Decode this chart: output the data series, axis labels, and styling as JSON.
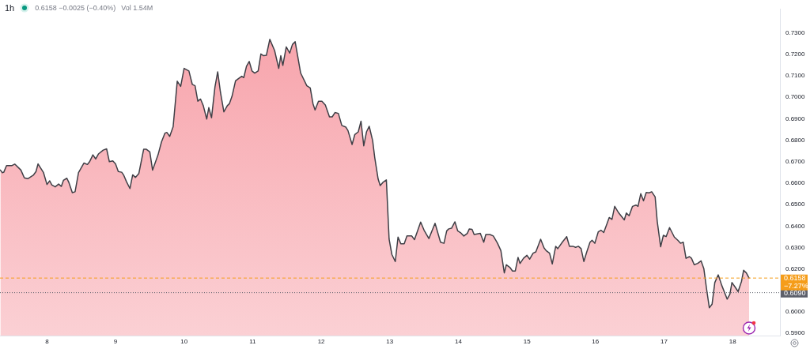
{
  "chart_data": {
    "type": "area",
    "title": "1h",
    "annotations": [
      "0.6158 −0.0025 (−0.40%)",
      "Vol 1.54M"
    ],
    "color": "#f7a1a9",
    "x": [
      7.32,
      7.35,
      7.37,
      7.41,
      7.49,
      7.53,
      7.62,
      7.67,
      7.72,
      7.8,
      7.84,
      7.87,
      7.95,
      8.0,
      8.04,
      8.07,
      8.12,
      8.17,
      8.21,
      8.24,
      8.29,
      8.32,
      8.37,
      8.41,
      8.46,
      8.54,
      8.59,
      8.62,
      8.67,
      8.71,
      8.75,
      8.82,
      8.87,
      8.91,
      8.96,
      9.0,
      9.04,
      9.09,
      9.12,
      9.16,
      9.21,
      9.25,
      9.29,
      9.34,
      9.41,
      9.45,
      9.5,
      9.54,
      9.62,
      9.67,
      9.72,
      9.75,
      9.79,
      9.84,
      9.9,
      9.95,
      10.0,
      10.07,
      10.12,
      10.16,
      10.2,
      10.24,
      10.28,
      10.33,
      10.36,
      10.4,
      10.45,
      10.49,
      10.53,
      10.58,
      10.63,
      10.66,
      10.7,
      10.75,
      10.8,
      10.84,
      10.87,
      10.91,
      10.95,
      10.99,
      11.03,
      11.08,
      11.12,
      11.16,
      11.2,
      11.25,
      11.32,
      11.38,
      11.41,
      11.44,
      11.49,
      11.54,
      11.58,
      11.62,
      11.7,
      11.79,
      11.84,
      11.88,
      11.91,
      11.96,
      12.01,
      12.06,
      12.12,
      12.16,
      12.2,
      12.25,
      12.3,
      12.36,
      12.39,
      12.45,
      12.49,
      12.54,
      12.58,
      12.62,
      12.66,
      12.7,
      12.75,
      12.78,
      12.83,
      12.86,
      12.9,
      12.95,
      12.99,
      13.03,
      13.08,
      13.12,
      13.16,
      13.21,
      13.25,
      13.32,
      13.36,
      13.45,
      13.5,
      13.57,
      13.66,
      13.74,
      13.79,
      13.83,
      13.86,
      13.9,
      13.95,
      13.99,
      14.03,
      14.08,
      14.13,
      14.16,
      14.2,
      14.23,
      14.32,
      14.37,
      14.4,
      14.46,
      14.51,
      14.57,
      14.62,
      14.67,
      14.7,
      14.75,
      14.79,
      14.83,
      14.87,
      14.9,
      14.95,
      15.0,
      15.04,
      15.09,
      15.13,
      15.2,
      15.25,
      15.28,
      15.33,
      15.37,
      15.42,
      15.45,
      15.52,
      15.58,
      15.62,
      15.67,
      15.71,
      15.75,
      15.79,
      15.83,
      15.87,
      15.92,
      15.95,
      15.99,
      16.04,
      16.08,
      16.12,
      16.17,
      16.2,
      16.24,
      16.28,
      16.34,
      16.42,
      16.45,
      16.49,
      16.54,
      16.59,
      16.62,
      16.66,
      16.7,
      16.74,
      16.78,
      16.82,
      16.87,
      16.9,
      16.95,
      16.99,
      17.03,
      17.08,
      17.15,
      17.2,
      17.24,
      17.28,
      17.32,
      17.37,
      17.4,
      17.44,
      17.49,
      17.54,
      17.58,
      17.62,
      17.66,
      17.7,
      17.74,
      17.79,
      17.84,
      17.92,
      17.96,
      17.99,
      18.03,
      18.08,
      18.13,
      18.16,
      18.2,
      18.24
    ],
    "values": [
      0.6661,
      0.6649,
      0.6651,
      0.6682,
      0.6682,
      0.6689,
      0.6661,
      0.6625,
      0.6621,
      0.6637,
      0.6654,
      0.669,
      0.6649,
      0.6594,
      0.6611,
      0.6592,
      0.6583,
      0.6596,
      0.6585,
      0.6613,
      0.6623,
      0.6603,
      0.6556,
      0.656,
      0.6649,
      0.6694,
      0.6687,
      0.6699,
      0.6732,
      0.6713,
      0.6736,
      0.6754,
      0.676,
      0.67,
      0.6704,
      0.669,
      0.6654,
      0.6651,
      0.6637,
      0.6607,
      0.6575,
      0.6639,
      0.6627,
      0.6645,
      0.6758,
      0.6758,
      0.6746,
      0.6661,
      0.6732,
      0.6792,
      0.6833,
      0.6836,
      0.6818,
      0.6863,
      0.7075,
      0.7051,
      0.7135,
      0.7123,
      0.706,
      0.7054,
      0.6982,
      0.6992,
      0.6961,
      0.6899,
      0.6952,
      0.6905,
      0.7048,
      0.7119,
      0.7024,
      0.6932,
      0.6961,
      0.697,
      0.7006,
      0.7077,
      0.7089,
      0.7098,
      0.7092,
      0.7145,
      0.7167,
      0.7123,
      0.7113,
      0.7123,
      0.7202,
      0.7194,
      0.7196,
      0.727,
      0.7218,
      0.7135,
      0.7194,
      0.7149,
      0.7235,
      0.7206,
      0.7246,
      0.7259,
      0.7113,
      0.7054,
      0.7044,
      0.697,
      0.6941,
      0.6982,
      0.6982,
      0.6964,
      0.6909,
      0.6909,
      0.6929,
      0.6925,
      0.6869,
      0.6861,
      0.6845,
      0.678,
      0.6827,
      0.6839,
      0.6889,
      0.6774,
      0.6839,
      0.6865,
      0.6798,
      0.672,
      0.6619,
      0.6589,
      0.6604,
      0.6615,
      0.6339,
      0.6268,
      0.6235,
      0.6349,
      0.6318,
      0.6318,
      0.6354,
      0.6354,
      0.6337,
      0.6419,
      0.6381,
      0.6342,
      0.6413,
      0.6325,
      0.632,
      0.6378,
      0.6387,
      0.639,
      0.642,
      0.6378,
      0.637,
      0.6354,
      0.6366,
      0.6387,
      0.6385,
      0.6361,
      0.6366,
      0.6325,
      0.6361,
      0.6361,
      0.6354,
      0.6321,
      0.6286,
      0.6182,
      0.622,
      0.6208,
      0.6191,
      0.6191,
      0.6254,
      0.6226,
      0.625,
      0.6264,
      0.6246,
      0.6274,
      0.628,
      0.6339,
      0.6298,
      0.6286,
      0.6274,
      0.6224,
      0.6306,
      0.6295,
      0.6327,
      0.6351,
      0.6306,
      0.6306,
      0.6301,
      0.6306,
      0.6295,
      0.6235,
      0.6277,
      0.6325,
      0.6334,
      0.632,
      0.6373,
      0.6381,
      0.637,
      0.6413,
      0.644,
      0.6431,
      0.6492,
      0.6461,
      0.6429,
      0.6461,
      0.6448,
      0.6492,
      0.6498,
      0.6492,
      0.6551,
      0.6518,
      0.6557,
      0.6555,
      0.656,
      0.6536,
      0.6423,
      0.6304,
      0.6357,
      0.6351,
      0.6393,
      0.6349,
      0.6334,
      0.632,
      0.6325,
      0.625,
      0.6258,
      0.625,
      0.622,
      0.6226,
      0.6238,
      0.6202,
      0.6107,
      0.602,
      0.6036,
      0.6137,
      0.6173,
      0.6125,
      0.606,
      0.6083,
      0.6137,
      0.6119,
      0.6095,
      0.6143,
      0.6194,
      0.6182,
      0.6158
    ],
    "xlim": [
      7.315,
      18.69
    ],
    "xticks": [
      8,
      9,
      10,
      11,
      12,
      13,
      14,
      15,
      16,
      17,
      18
    ],
    "ylim": [
      0.589,
      0.741
    ],
    "yticks": [
      {
        "value": 0.59,
        "label": "0.5900"
      },
      {
        "value": 0.6,
        "label": "0.6000"
      },
      {
        "value": 0.62,
        "label": "0.6200"
      },
      {
        "value": 0.63,
        "label": "0.6300"
      },
      {
        "value": 0.64,
        "label": "0.6400"
      },
      {
        "value": 0.65,
        "label": "0.6500"
      },
      {
        "value": 0.66,
        "label": "0.6600"
      },
      {
        "value": 0.67,
        "label": "0.6700"
      },
      {
        "value": 0.68,
        "label": "0.6800"
      },
      {
        "value": 0.69,
        "label": "0.6900"
      },
      {
        "value": 0.7,
        "label": "0.7000"
      },
      {
        "value": 0.71,
        "label": "0.7100"
      },
      {
        "value": 0.72,
        "label": "0.7200"
      },
      {
        "value": 0.73,
        "label": "0.7300"
      }
    ],
    "ref_lines": [
      {
        "axis": "y",
        "value": 0.609,
        "label": "0.6090",
        "color": "#5d606b",
        "line_style": "dotted"
      },
      {
        "axis": "y",
        "value": 0.6158,
        "label": "0.6158\n−7.27%",
        "color": "#f59d1a",
        "line_style": "dashed"
      }
    ]
  }
}
